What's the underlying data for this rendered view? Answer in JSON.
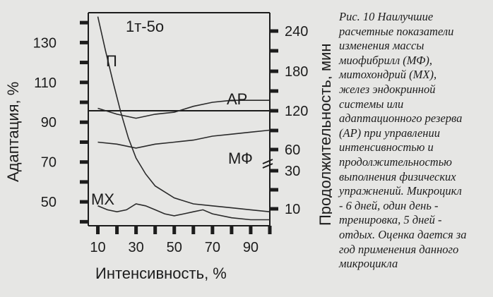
{
  "chart_data": {
    "type": "line",
    "panel_label": "1т-5о",
    "xlabel": "Интенсивность, %",
    "ylabel_left": "Адаптация, %",
    "ylabel_right": "Продолжительность, мин",
    "x_ticks": [
      "10",
      "30",
      "50",
      "70",
      "90"
    ],
    "y_left_ticks": [
      "50",
      "70",
      "90",
      "110",
      "130"
    ],
    "y_right_ticks": [
      "10",
      "30",
      "60",
      "120",
      "180",
      "240"
    ],
    "xlim": [
      5,
      100
    ],
    "ylim": [
      38,
      145
    ],
    "series": [
      {
        "name": "П",
        "x": [
          10,
          14,
          18,
          22,
          26,
          30,
          35,
          40,
          50,
          60,
          70,
          80,
          90,
          100
        ],
        "y": [
          143,
          126,
          110,
          95,
          82,
          72,
          64,
          58,
          52,
          49,
          48,
          47,
          46,
          45
        ]
      },
      {
        "name": "АР",
        "x": [
          10,
          20,
          30,
          40,
          50,
          60,
          70,
          80,
          90,
          100
        ],
        "y": [
          97,
          94,
          92,
          94,
          95,
          98,
          100,
          101,
          101,
          101
        ]
      },
      {
        "name": "МФ",
        "x": [
          10,
          20,
          30,
          40,
          50,
          60,
          70,
          80,
          90,
          100
        ],
        "y": [
          80,
          79,
          77,
          79,
          80,
          81,
          83,
          84,
          85,
          86
        ]
      },
      {
        "name": "МХ",
        "x": [
          10,
          15,
          20,
          25,
          30,
          35,
          40,
          45,
          50,
          55,
          60,
          65,
          70,
          80,
          90,
          100
        ],
        "y": [
          48,
          46,
          45,
          46,
          49,
          48,
          46,
          44,
          43,
          44,
          45,
          46,
          44,
          42,
          41,
          41
        ]
      }
    ]
  },
  "caption": "Рис. 10 Наилучшие\nрасчетные показатели\nизменения массы\nмиофибрилл (МФ),\nмитохондрий (МХ),\nжелез эндокринной\nсистемы или\nадаптационного резерва\n(АР) при управлении\nинтенсивностью и\nпродолжительностью\nвыполнения физических\nупражнений. Микроцикл\n- 6 дней, один день -\nтренировка, 5 дней -\nотдых. Оценка дается за\nгод применения данного\nмикроцикла"
}
